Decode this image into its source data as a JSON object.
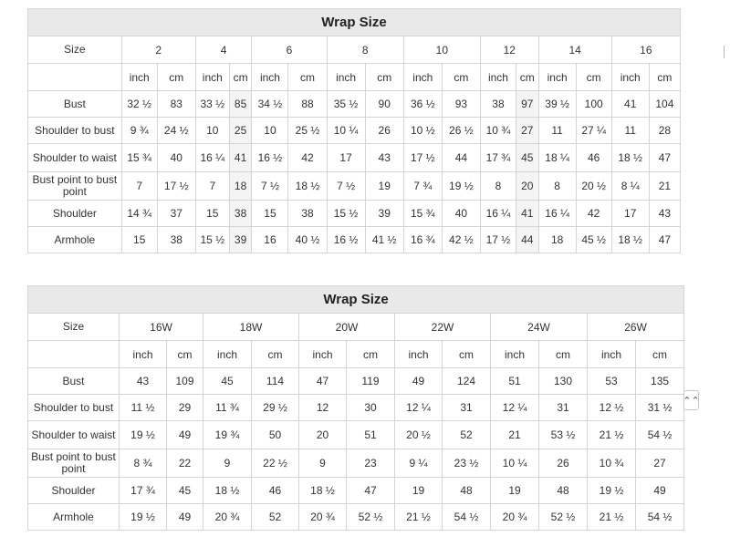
{
  "scroll_top_glyph": "⌃⌃",
  "tables": [
    {
      "title": "Wrap Size",
      "size_header": "Size",
      "sizes": [
        "2",
        "4",
        "6",
        "8",
        "10",
        "12",
        "14",
        "16"
      ],
      "units": [
        "inch",
        "cm"
      ],
      "rows": [
        {
          "label": "Bust",
          "values": [
            "32 ½",
            "83",
            "33 ½",
            "85",
            "34 ½",
            "88",
            "35 ½",
            "90",
            "36 ½",
            "93",
            "38",
            "97",
            "39 ½",
            "100",
            "41",
            "104"
          ]
        },
        {
          "label": "Shoulder to bust",
          "values": [
            "9 ¾",
            "24 ½",
            "10",
            "25",
            "10",
            "25 ½",
            "10 ¼",
            "26",
            "10 ½",
            "26 ½",
            "10 ¾",
            "27",
            "11",
            "27 ¼",
            "11",
            "28"
          ]
        },
        {
          "label": "Shoulder to waist",
          "values": [
            "15 ¾",
            "40",
            "16 ¼",
            "41",
            "16 ½",
            "42",
            "17",
            "43",
            "17 ½",
            "44",
            "17 ¾",
            "45",
            "18 ¼",
            "46",
            "18 ½",
            "47"
          ]
        },
        {
          "label": "Bust point to bust point",
          "values": [
            "7",
            "17 ½",
            "7",
            "18",
            "7 ½",
            "18 ½",
            "7 ½",
            "19",
            "7 ¾",
            "19 ½",
            "8",
            "20",
            "8",
            "20 ½",
            "8 ¼",
            "21"
          ]
        },
        {
          "label": "Shoulder",
          "values": [
            "14 ¾",
            "37",
            "15",
            "38",
            "15",
            "38",
            "15 ½",
            "39",
            "15 ¾",
            "40",
            "16 ¼",
            "41",
            "16 ¼",
            "42",
            "17",
            "43"
          ]
        },
        {
          "label": "Armhole",
          "values": [
            "15",
            "38",
            "15 ½",
            "39",
            "16",
            "40 ½",
            "16 ½",
            "41 ½",
            "16 ¾",
            "42 ½",
            "17 ½",
            "44",
            "18",
            "45 ½",
            "18 ½",
            "47"
          ]
        }
      ]
    },
    {
      "title": "Wrap Size",
      "size_header": "Size",
      "sizes": [
        "16W",
        "18W",
        "20W",
        "22W",
        "24W",
        "26W"
      ],
      "units": [
        "inch",
        "cm"
      ],
      "rows": [
        {
          "label": "Bust",
          "values": [
            "43",
            "109",
            "45",
            "114",
            "47",
            "119",
            "49",
            "124",
            "51",
            "130",
            "53",
            "135"
          ]
        },
        {
          "label": "Shoulder to bust",
          "values": [
            "11 ½",
            "29",
            "11 ¾",
            "29 ½",
            "12",
            "30",
            "12 ¼",
            "31",
            "12 ¼",
            "31",
            "12 ½",
            "31 ½"
          ]
        },
        {
          "label": "Shoulder to waist",
          "values": [
            "19 ½",
            "49",
            "19 ¾",
            "50",
            "20",
            "51",
            "20 ½",
            "52",
            "21",
            "53 ½",
            "21 ½",
            "54 ½"
          ]
        },
        {
          "label": "Bust point to bust point",
          "values": [
            "8 ¾",
            "22",
            "9",
            "22 ½",
            "9",
            "23",
            "9 ¼",
            "23 ½",
            "10 ¼",
            "26",
            "10 ¾",
            "27"
          ]
        },
        {
          "label": "Shoulder",
          "values": [
            "17 ¾",
            "45",
            "18 ½",
            "46",
            "18 ½",
            "47",
            "19",
            "48",
            "19",
            "48",
            "19 ½",
            "49"
          ]
        },
        {
          "label": "Armhole",
          "values": [
            "19 ½",
            "49",
            "20 ¾",
            "52",
            "20 ¾",
            "52 ½",
            "21 ½",
            "54 ½",
            "20 ¾",
            "52 ½",
            "21 ½",
            "54 ½"
          ]
        }
      ]
    }
  ]
}
